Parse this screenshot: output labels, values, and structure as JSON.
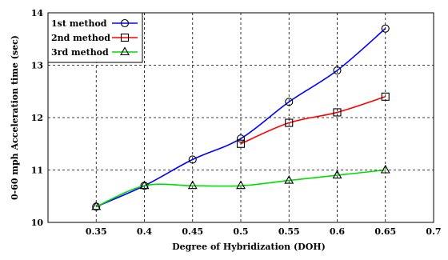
{
  "chart_data": {
    "type": "line",
    "xlabel": "Degree of Hybridization (DOH)",
    "ylabel": "0-60 mph Acceleration time (sec)",
    "xlim": [
      0.3,
      0.7
    ],
    "ylim": [
      10,
      14
    ],
    "xticks": [
      "0.35",
      "0.4",
      "0.45",
      "0.5",
      "0.55",
      "0.6",
      "0.65",
      "0.7"
    ],
    "yticks": [
      "10",
      "11",
      "12",
      "13",
      "14"
    ],
    "grid": true,
    "legend_position": "top-left",
    "series": [
      {
        "name": "1st method",
        "color": "#0000ff",
        "marker": "circle",
        "x": [
          0.35,
          0.4,
          0.45,
          0.5,
          0.55,
          0.6,
          0.65
        ],
        "y": [
          10.3,
          10.7,
          11.2,
          11.6,
          12.3,
          12.9,
          13.7
        ]
      },
      {
        "name": "2nd method",
        "color": "#ff0000",
        "marker": "square",
        "x": [
          0.5,
          0.55,
          0.6,
          0.65
        ],
        "y": [
          11.5,
          11.9,
          12.1,
          12.4
        ]
      },
      {
        "name": "3rd method",
        "color": "#00dd00",
        "marker": "triangle",
        "x": [
          0.35,
          0.4,
          0.45,
          0.5,
          0.55,
          0.6,
          0.65
        ],
        "y": [
          10.3,
          10.7,
          10.7,
          10.7,
          10.8,
          10.9,
          11.0
        ]
      }
    ]
  }
}
